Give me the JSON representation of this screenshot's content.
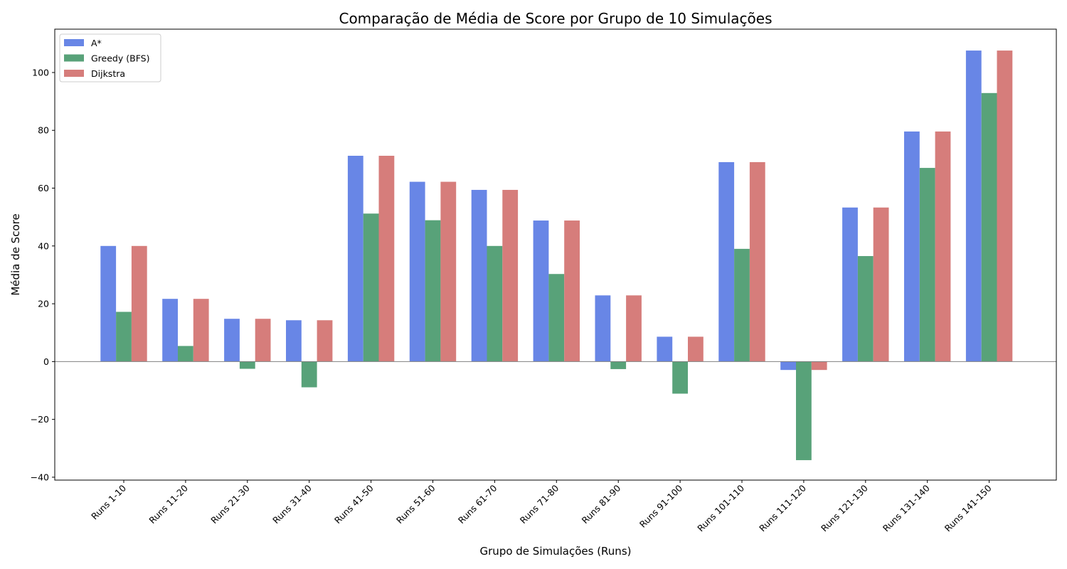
{
  "chart_data": {
    "type": "bar",
    "title": "Comparação de Média de Score por Grupo de 10 Simulações",
    "xlabel": "Grupo de Simulações (Runs)",
    "ylabel": "Média de Score",
    "ylim": [
      -41,
      115
    ],
    "yticks": [
      -40,
      -20,
      0,
      20,
      40,
      60,
      80,
      100
    ],
    "grid": false,
    "legend_position": "top-left",
    "categories": [
      "Runs 1-10",
      "Runs 11-20",
      "Runs 21-30",
      "Runs 31-40",
      "Runs 41-50",
      "Runs 51-60",
      "Runs 61-70",
      "Runs 71-80",
      "Runs 81-90",
      "Runs 91-100",
      "Runs 101-110",
      "Runs 111-120",
      "Runs 121-130",
      "Runs 131-140",
      "Runs 141-150"
    ],
    "series": [
      {
        "name": "A*",
        "color": "#6886e6",
        "values": [
          40.0,
          21.7,
          14.8,
          14.3,
          71.2,
          62.2,
          59.4,
          48.8,
          22.9,
          8.6,
          69.0,
          -2.9,
          53.3,
          79.6,
          107.6
        ]
      },
      {
        "name": "Greedy (BFS)",
        "color": "#58a279",
        "values": [
          17.2,
          5.4,
          -2.5,
          -8.9,
          51.2,
          48.9,
          40.0,
          30.3,
          -2.6,
          -11.1,
          39.0,
          -34.1,
          36.5,
          67.0,
          92.9
        ]
      },
      {
        "name": "Dijkstra",
        "color": "#d67d7b",
        "values": [
          40.0,
          21.7,
          14.8,
          14.3,
          71.2,
          62.2,
          59.4,
          48.8,
          22.9,
          8.6,
          69.0,
          -2.9,
          53.3,
          79.6,
          107.6
        ]
      }
    ]
  }
}
